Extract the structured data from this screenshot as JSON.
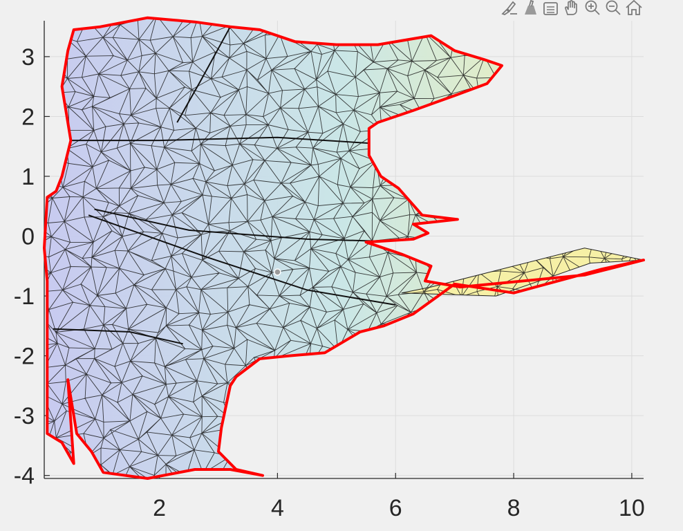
{
  "toolbar": {
    "buttons": [
      {
        "name": "brush-icon"
      },
      {
        "name": "data-tips-icon"
      },
      {
        "name": "data-cursor-icon"
      },
      {
        "name": "pan-hand-icon"
      },
      {
        "name": "zoom-in-icon"
      },
      {
        "name": "zoom-out-icon"
      },
      {
        "name": "home-restore-icon"
      }
    ]
  },
  "chart_data": {
    "type": "surface-mesh",
    "title": "",
    "xlabel": "",
    "ylabel": "",
    "xlim": [
      0.05,
      10.2
    ],
    "ylim": [
      -4.05,
      3.6
    ],
    "grid": true,
    "xticks": [
      2,
      4,
      6,
      8,
      10
    ],
    "yticks": [
      3,
      2,
      1,
      0,
      -1,
      -2,
      -3,
      -4
    ],
    "boundary_color": "#ff0000",
    "colormap": [
      "#c6c8f0",
      "#c8e6e6",
      "#f8f4a8"
    ],
    "boundary": [
      [
        0.45,
        3.1
      ],
      [
        0.55,
        3.45
      ],
      [
        1.0,
        3.5
      ],
      [
        1.8,
        3.65
      ],
      [
        2.6,
        3.58
      ],
      [
        3.2,
        3.5
      ],
      [
        3.7,
        3.45
      ],
      [
        4.3,
        3.25
      ],
      [
        5.0,
        3.2
      ],
      [
        5.7,
        3.2
      ],
      [
        6.6,
        3.35
      ],
      [
        7.0,
        3.1
      ],
      [
        7.5,
        2.95
      ],
      [
        7.8,
        2.85
      ],
      [
        7.55,
        2.55
      ],
      [
        7.0,
        2.35
      ],
      [
        6.3,
        2.1
      ],
      [
        5.7,
        1.9
      ],
      [
        5.55,
        1.8
      ],
      [
        5.55,
        1.35
      ],
      [
        5.75,
        1.0
      ],
      [
        6.05,
        0.8
      ],
      [
        6.45,
        0.35
      ],
      [
        7.05,
        0.28
      ],
      [
        6.3,
        0.2
      ],
      [
        6.55,
        0.05
      ],
      [
        6.3,
        -0.05
      ],
      [
        5.5,
        -0.1
      ],
      [
        6.1,
        -0.3
      ],
      [
        6.6,
        -0.5
      ],
      [
        6.5,
        -0.75
      ],
      [
        7.1,
        -0.85
      ],
      [
        9.2,
        -0.65
      ],
      [
        10.2,
        -0.4
      ],
      [
        9.5,
        -0.55
      ],
      [
        8.0,
        -0.95
      ],
      [
        7.0,
        -0.8
      ],
      [
        6.3,
        -1.3
      ],
      [
        5.8,
        -1.5
      ],
      [
        5.4,
        -1.6
      ],
      [
        4.8,
        -1.95
      ],
      [
        4.2,
        -2.0
      ],
      [
        3.7,
        -2.05
      ],
      [
        3.3,
        -2.35
      ],
      [
        3.2,
        -2.5
      ],
      [
        3.05,
        -3.2
      ],
      [
        3.0,
        -3.6
      ],
      [
        3.3,
        -3.9
      ],
      [
        3.75,
        -4.0
      ],
      [
        3.2,
        -3.9
      ],
      [
        2.6,
        -3.9
      ],
      [
        1.8,
        -4.05
      ],
      [
        1.05,
        -3.95
      ],
      [
        0.85,
        -3.6
      ],
      [
        0.6,
        -3.3
      ],
      [
        0.45,
        -2.4
      ],
      [
        0.55,
        -3.8
      ],
      [
        0.35,
        -3.45
      ],
      [
        0.1,
        -3.3
      ],
      [
        0.1,
        -1.6
      ],
      [
        0.1,
        -0.75
      ],
      [
        0.05,
        -0.2
      ],
      [
        0.1,
        0.65
      ],
      [
        0.25,
        0.75
      ],
      [
        0.35,
        1.0
      ],
      [
        0.5,
        1.6
      ],
      [
        0.35,
        2.5
      ],
      [
        0.45,
        3.1
      ]
    ],
    "appendage": [
      [
        6.6,
        -0.85
      ],
      [
        9.2,
        -0.2
      ],
      [
        10.2,
        -0.4
      ],
      [
        9.3,
        -0.45
      ],
      [
        7.7,
        -1.0
      ],
      [
        6.1,
        -0.95
      ]
    ],
    "marker": {
      "x": 4.0,
      "y": -0.6
    }
  }
}
